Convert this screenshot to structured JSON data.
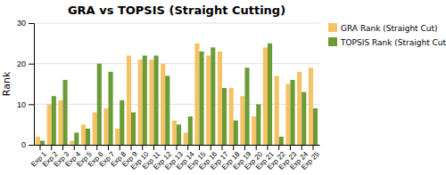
{
  "chart_data": {
    "type": "bar",
    "title": "GRA vs TOPSIS (Straight Cutting)",
    "ylabel": "Rank",
    "categories": [
      "Exp 1",
      "Exp 2",
      "Exp 3",
      "Exp 4",
      "Exp 5",
      "Exp 6",
      "Exp 7",
      "Exp 8",
      "Exp 9",
      "Exp 10",
      "Exp 11",
      "Exp 12",
      "Exp 13",
      "Exp 14",
      "Exp 15",
      "Exp 16",
      "Exp 17",
      "Exp 18",
      "Exp 19",
      "Exp 20",
      "Exp 21",
      "Exp 22",
      "Exp 23",
      "Exp 24",
      "Exp 25"
    ],
    "series": [
      {
        "name": "GRA Rank (Straight Cut)",
        "color": "#F5C265",
        "values": [
          2,
          10,
          11,
          1,
          5,
          8,
          9,
          4,
          22,
          21,
          21,
          20,
          6,
          3,
          25,
          22,
          23,
          14,
          12,
          7,
          24,
          17,
          15,
          18,
          19
        ]
      },
      {
        "name": "TOPSIS Rank (Straight Cut)",
        "color": "#6B9B37",
        "values": [
          1,
          12,
          16,
          3,
          4,
          20,
          18,
          11,
          8,
          22,
          22,
          17,
          5,
          7,
          23,
          24,
          14,
          6,
          19,
          10,
          25,
          2,
          16,
          13,
          9
        ]
      }
    ],
    "ylim": [
      0,
      30
    ],
    "yticks": [
      0,
      10,
      20,
      30
    ],
    "grid": true,
    "legend": "right"
  }
}
